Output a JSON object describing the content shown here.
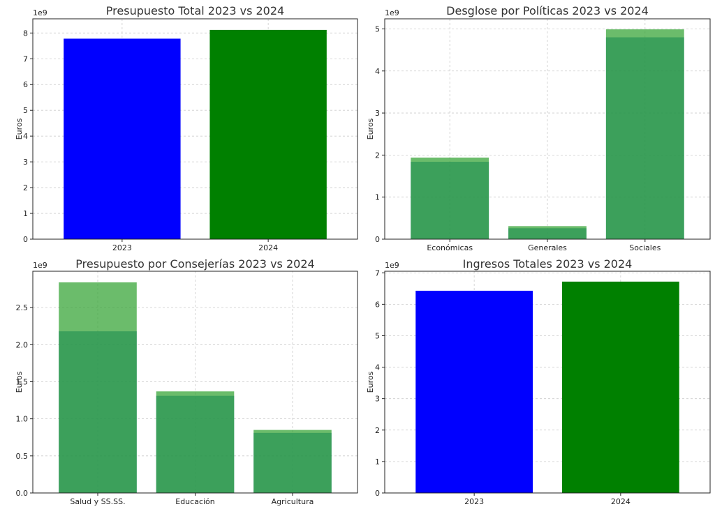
{
  "chart_data": [
    {
      "type": "bar",
      "title": "Presupuesto Total 2023 vs 2024",
      "ylabel": "Euros",
      "xlabel": "",
      "exponent_label": "1e9",
      "categories": [
        "2023",
        "2024"
      ],
      "values": [
        7.78,
        8.12
      ],
      "value_scale": 1000000000,
      "colors": [
        "#0000ff",
        "#008000"
      ],
      "ylim": [
        0,
        8.55
      ],
      "yticks": [
        0,
        1,
        2,
        3,
        4,
        5,
        6,
        7,
        8
      ],
      "grid": true
    },
    {
      "type": "bar",
      "title": "Desglose por Políticas 2023 vs 2024",
      "ylabel": "Euros",
      "xlabel": "",
      "exponent_label": "1e9",
      "categories": [
        "Económicas",
        "Generales",
        "Sociales"
      ],
      "series": [
        {
          "values": [
            1.84,
            0.26,
            4.8
          ],
          "color": "#1f77b4"
        },
        {
          "values": [
            1.94,
            0.31,
            4.99
          ],
          "color": "#2ca02c"
        }
      ],
      "overlay_alpha": 0.7,
      "ylim": [
        0,
        5.24
      ],
      "yticks": [
        0,
        1,
        2,
        3,
        4,
        5
      ],
      "grid": true
    },
    {
      "type": "bar",
      "title": "Presupuesto por Consejerías 2023 vs 2024",
      "ylabel": "Euros",
      "xlabel": "",
      "exponent_label": "1e9",
      "categories": [
        "Salud y SS.SS.",
        "Educación",
        "Agricultura"
      ],
      "series": [
        {
          "values": [
            2.18,
            1.31,
            0.81
          ],
          "color": "#1f77b4"
        },
        {
          "values": [
            2.84,
            1.37,
            0.85
          ],
          "color": "#2ca02c"
        }
      ],
      "overlay_alpha": 0.7,
      "ylim": [
        0,
        2.99
      ],
      "yticks": [
        0,
        0.5,
        1.0,
        1.5,
        2.0,
        2.5
      ],
      "grid": true
    },
    {
      "type": "bar",
      "title": "Ingresos Totales 2023 vs 2024",
      "ylabel": "Euros",
      "xlabel": "",
      "exponent_label": "1e9",
      "categories": [
        "2023",
        "2024"
      ],
      "values": [
        6.43,
        6.72
      ],
      "value_scale": 1000000000,
      "colors": [
        "#0000ff",
        "#008000"
      ],
      "ylim": [
        0,
        7.05
      ],
      "yticks": [
        0,
        1,
        2,
        3,
        4,
        5,
        6,
        7
      ],
      "grid": true
    }
  ]
}
